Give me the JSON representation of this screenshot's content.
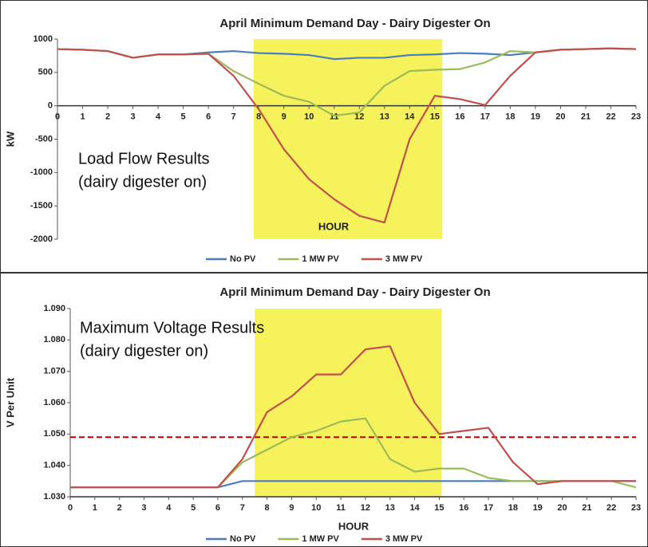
{
  "chart_data": [
    {
      "type": "line",
      "title": "April Minimum Demand Day - Dairy Digester On",
      "xlabel": "HOUR",
      "ylabel": "kW",
      "annotation": [
        "Load Flow Results",
        "(dairy digester on)"
      ],
      "x": [
        0,
        1,
        2,
        3,
        4,
        5,
        6,
        7,
        8,
        9,
        10,
        11,
        12,
        13,
        14,
        15,
        16,
        17,
        18,
        19,
        20,
        21,
        22,
        23
      ],
      "xlim": [
        0,
        23
      ],
      "xticks": [
        0,
        1,
        2,
        3,
        4,
        5,
        6,
        7,
        8,
        9,
        10,
        11,
        12,
        13,
        14,
        15,
        16,
        17,
        18,
        19,
        20,
        21,
        22,
        23
      ],
      "ylim": [
        -2000,
        1000
      ],
      "yticks": [
        -2000,
        -1500,
        -1000,
        -500,
        0,
        500,
        1000
      ],
      "highlight": {
        "range": [
          7.8,
          15.3
        ],
        "color": "#f6f25c"
      },
      "series": [
        {
          "name": "No PV",
          "color": "#4a7ebb",
          "values": [
            850,
            840,
            820,
            720,
            770,
            770,
            800,
            820,
            790,
            780,
            760,
            700,
            720,
            720,
            760,
            770,
            790,
            780,
            760,
            800,
            840,
            850,
            860,
            850
          ]
        },
        {
          "name": "1 MW PV",
          "color": "#9bbb59",
          "values": [
            850,
            840,
            820,
            720,
            770,
            770,
            780,
            520,
            330,
            150,
            60,
            -150,
            -100,
            300,
            520,
            540,
            550,
            650,
            820,
            800,
            840,
            850,
            860,
            850
          ]
        },
        {
          "name": "3 MW PV",
          "color": "#c0504d",
          "values": [
            850,
            840,
            820,
            720,
            770,
            770,
            780,
            450,
            -50,
            -650,
            -1100,
            -1400,
            -1650,
            -1750,
            -500,
            150,
            100,
            10,
            450,
            800,
            840,
            850,
            860,
            850
          ]
        }
      ]
    },
    {
      "type": "line",
      "title": "April Minimum Demand Day - Dairy Digester On",
      "xlabel": "HOUR",
      "ylabel": "V Per Unit",
      "annotation": [
        "Maximum Voltage Results",
        "(dairy digester on)"
      ],
      "x": [
        0,
        1,
        2,
        3,
        4,
        5,
        6,
        7,
        8,
        9,
        10,
        11,
        12,
        13,
        14,
        15,
        16,
        17,
        18,
        19,
        20,
        21,
        22,
        23
      ],
      "xlim": [
        0,
        23
      ],
      "xticks": [
        0,
        1,
        2,
        3,
        4,
        5,
        6,
        7,
        8,
        9,
        10,
        11,
        12,
        13,
        14,
        15,
        16,
        17,
        18,
        19,
        20,
        21,
        22,
        23
      ],
      "ylim": [
        1.03,
        1.09
      ],
      "yticks": [
        {
          "value": 1.03,
          "label": "1.030"
        },
        {
          "value": 1.04,
          "label": "1.040"
        },
        {
          "value": 1.05,
          "label": "1.050"
        },
        {
          "value": 1.06,
          "label": "1.060"
        },
        {
          "value": 1.07,
          "label": "1.070"
        },
        {
          "value": 1.08,
          "label": "1.080"
        },
        {
          "value": 1.09,
          "label": "1.090"
        }
      ],
      "highlight": {
        "range": [
          7.5,
          15.1
        ],
        "color": "#f6f25c"
      },
      "ref_line": {
        "value": 1.049,
        "color": "#c00000"
      },
      "series": [
        {
          "name": "No PV",
          "color": "#4a7ebb",
          "values": [
            1.033,
            1.033,
            1.033,
            1.033,
            1.033,
            1.033,
            1.033,
            1.035,
            1.035,
            1.035,
            1.035,
            1.035,
            1.035,
            1.035,
            1.035,
            1.035,
            1.035,
            1.035,
            1.035,
            1.035,
            1.035,
            1.035,
            1.035,
            1.035
          ]
        },
        {
          "name": "1 MW PV",
          "color": "#9bbb59",
          "values": [
            1.033,
            1.033,
            1.033,
            1.033,
            1.033,
            1.033,
            1.033,
            1.041,
            1.045,
            1.049,
            1.051,
            1.054,
            1.055,
            1.042,
            1.038,
            1.039,
            1.039,
            1.036,
            1.035,
            1.035,
            1.035,
            1.035,
            1.035,
            1.033
          ]
        },
        {
          "name": "3 MW PV",
          "color": "#c0504d",
          "values": [
            1.033,
            1.033,
            1.033,
            1.033,
            1.033,
            1.033,
            1.033,
            1.042,
            1.057,
            1.062,
            1.069,
            1.069,
            1.077,
            1.078,
            1.06,
            1.05,
            1.051,
            1.052,
            1.041,
            1.034,
            1.035,
            1.035,
            1.035,
            1.035
          ]
        }
      ]
    }
  ]
}
